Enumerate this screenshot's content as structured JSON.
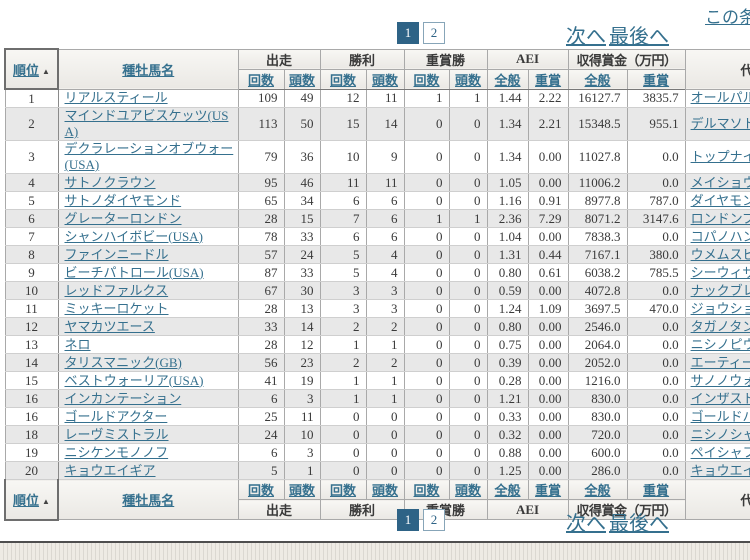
{
  "page": {
    "top_right_link": "この条",
    "pagination": {
      "page1": "1",
      "page2": "2",
      "next_label": "次へ",
      "last_label": "最後へ"
    }
  },
  "colors": {
    "link": "#35708e",
    "pagination_active_bg": "#2e6386",
    "row_alt_bg": "#e8e8e8",
    "header_bg": "#f0eeea"
  },
  "table": {
    "rank_header": "順位",
    "sort_arrow": "▲",
    "name_header": "種牡馬名",
    "rep_header": "代表馬",
    "groups": [
      {
        "label": "出走",
        "sub1": "回数",
        "sub2": "頭数"
      },
      {
        "label": "勝利",
        "sub1": "回数",
        "sub2": "頭数"
      },
      {
        "label": "重賞勝",
        "sub1": "回数",
        "sub2": "頭数"
      },
      {
        "label": "AEI",
        "sub1": "全般",
        "sub2": "重賞"
      },
      {
        "label": "収得賞金（万円）",
        "sub1": "全般",
        "sub2": "重賞"
      }
    ],
    "rows": [
      [
        "1",
        "リアルスティール",
        "109",
        "49",
        "12",
        "11",
        "1",
        "1",
        "1.44",
        "2.22",
        "16127.7",
        "3835.7",
        "オールパルフェ"
      ],
      [
        "2",
        "マインドユアビスケッツ(USA)",
        "113",
        "50",
        "15",
        "14",
        "0",
        "0",
        "1.34",
        "2.21",
        "15348.5",
        "955.1",
        "デルマソトガケ"
      ],
      [
        "3",
        "デクラレーションオブウォー(USA)",
        "79",
        "36",
        "10",
        "9",
        "0",
        "0",
        "1.34",
        "0.00",
        "11027.8",
        "0.0",
        "トップナイフ"
      ],
      [
        "4",
        "サトノクラウン",
        "95",
        "46",
        "11",
        "11",
        "0",
        "0",
        "1.05",
        "0.00",
        "11006.2",
        "0.0",
        "メイショウコ"
      ],
      [
        "5",
        "サトノダイヤモンド",
        "65",
        "34",
        "6",
        "6",
        "0",
        "0",
        "1.16",
        "0.91",
        "8977.8",
        "787.0",
        "ダイヤモンドハ"
      ],
      [
        "6",
        "グレーターロンドン",
        "28",
        "15",
        "7",
        "6",
        "1",
        "1",
        "2.36",
        "7.29",
        "8071.2",
        "3147.6",
        "ロンドンプラン"
      ],
      [
        "7",
        "シャンハイボビー(USA)",
        "78",
        "33",
        "6",
        "6",
        "0",
        "0",
        "1.04",
        "0.00",
        "7838.3",
        "0.0",
        "コパノハンプト"
      ],
      [
        "8",
        "ファインニードル",
        "57",
        "24",
        "5",
        "4",
        "0",
        "0",
        "1.31",
        "0.44",
        "7167.1",
        "380.0",
        "ウメムスビ"
      ],
      [
        "9",
        "ビーチパトロール(USA)",
        "87",
        "33",
        "5",
        "4",
        "0",
        "0",
        "0.80",
        "0.61",
        "6038.2",
        "785.5",
        "シーウィザー"
      ],
      [
        "10",
        "レッドファルクス",
        "67",
        "30",
        "3",
        "3",
        "0",
        "0",
        "0.59",
        "0.00",
        "4072.8",
        "0.0",
        "ナックブレイ"
      ],
      [
        "11",
        "ミッキーロケット",
        "28",
        "13",
        "3",
        "3",
        "0",
        "0",
        "1.24",
        "1.09",
        "3697.5",
        "470.0",
        "ジョウショー"
      ],
      [
        "12",
        "ヤマカツエース",
        "33",
        "14",
        "2",
        "2",
        "0",
        "0",
        "0.80",
        "0.00",
        "2546.0",
        "0.0",
        "タガノタント"
      ],
      [
        "13",
        "ネロ",
        "28",
        "12",
        "1",
        "1",
        "0",
        "0",
        "0.75",
        "0.00",
        "2064.0",
        "0.0",
        "ニシノピウモ"
      ],
      [
        "14",
        "タリスマニック(GB)",
        "56",
        "23",
        "2",
        "2",
        "0",
        "0",
        "0.39",
        "0.00",
        "2052.0",
        "0.0",
        "エーティース"
      ],
      [
        "15",
        "ベストウォーリア(USA)",
        "41",
        "19",
        "1",
        "1",
        "0",
        "0",
        "0.28",
        "0.00",
        "1216.0",
        "0.0",
        "サノノウォー"
      ],
      [
        "16",
        "インカンテーション",
        "6",
        "3",
        "1",
        "1",
        "0",
        "0",
        "1.21",
        "0.00",
        "830.0",
        "0.0",
        "インザストー"
      ],
      [
        "16",
        "ゴールドアクター",
        "25",
        "11",
        "0",
        "0",
        "0",
        "0",
        "0.33",
        "0.00",
        "830.0",
        "0.0",
        "ゴールドバラ"
      ],
      [
        "18",
        "レーヴミストラル",
        "24",
        "10",
        "0",
        "0",
        "0",
        "0",
        "0.32",
        "0.00",
        "720.0",
        "0.0",
        "ニシノシャイ"
      ],
      [
        "19",
        "ニシケンモノノフ",
        "6",
        "3",
        "0",
        "0",
        "0",
        "0",
        "0.88",
        "0.00",
        "600.0",
        "0.0",
        "ペイシャフラ"
      ],
      [
        "20",
        "キョウエイギア",
        "5",
        "1",
        "0",
        "0",
        "0",
        "0",
        "1.25",
        "0.00",
        "286.0",
        "0.0",
        "キョウエイル"
      ]
    ]
  }
}
